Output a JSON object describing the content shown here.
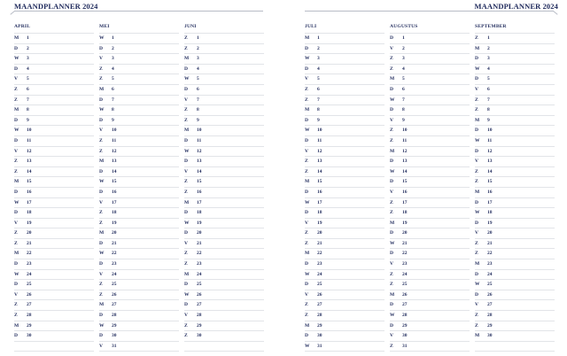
{
  "header": {
    "left_title": "MAANDPLANNER 2024",
    "right_title": "MAANDPLANNER 2024"
  },
  "colors": {
    "text": "#1f2a5c",
    "lines": "#e2e4e8"
  },
  "months": [
    {
      "name": "APRIL",
      "days": [
        [
          "M",
          1
        ],
        [
          "D",
          2
        ],
        [
          "W",
          3
        ],
        [
          "D",
          4
        ],
        [
          "V",
          5
        ],
        [
          "Z",
          6
        ],
        [
          "Z",
          7
        ],
        [
          "M",
          8
        ],
        [
          "D",
          9
        ],
        [
          "W",
          10
        ],
        [
          "D",
          11
        ],
        [
          "V",
          12
        ],
        [
          "Z",
          13
        ],
        [
          "Z",
          14
        ],
        [
          "M",
          15
        ],
        [
          "D",
          16
        ],
        [
          "W",
          17
        ],
        [
          "D",
          18
        ],
        [
          "V",
          19
        ],
        [
          "Z",
          20
        ],
        [
          "Z",
          21
        ],
        [
          "M",
          22
        ],
        [
          "D",
          23
        ],
        [
          "W",
          24
        ],
        [
          "D",
          25
        ],
        [
          "V",
          26
        ],
        [
          "Z",
          27
        ],
        [
          "Z",
          28
        ],
        [
          "M",
          29
        ],
        [
          "D",
          30
        ]
      ]
    },
    {
      "name": "MEI",
      "days": [
        [
          "W",
          1
        ],
        [
          "D",
          2
        ],
        [
          "V",
          3
        ],
        [
          "Z",
          4
        ],
        [
          "Z",
          5
        ],
        [
          "M",
          6
        ],
        [
          "D",
          7
        ],
        [
          "W",
          8
        ],
        [
          "D",
          9
        ],
        [
          "V",
          10
        ],
        [
          "Z",
          11
        ],
        [
          "Z",
          12
        ],
        [
          "M",
          13
        ],
        [
          "D",
          14
        ],
        [
          "W",
          15
        ],
        [
          "D",
          16
        ],
        [
          "V",
          17
        ],
        [
          "Z",
          18
        ],
        [
          "Z",
          19
        ],
        [
          "M",
          20
        ],
        [
          "D",
          21
        ],
        [
          "W",
          22
        ],
        [
          "D",
          23
        ],
        [
          "V",
          24
        ],
        [
          "Z",
          25
        ],
        [
          "Z",
          26
        ],
        [
          "M",
          27
        ],
        [
          "D",
          28
        ],
        [
          "W",
          29
        ],
        [
          "D",
          30
        ],
        [
          "V",
          31
        ]
      ]
    },
    {
      "name": "JUNI",
      "days": [
        [
          "Z",
          1
        ],
        [
          "Z",
          2
        ],
        [
          "M",
          3
        ],
        [
          "D",
          4
        ],
        [
          "W",
          5
        ],
        [
          "D",
          6
        ],
        [
          "V",
          7
        ],
        [
          "Z",
          8
        ],
        [
          "Z",
          9
        ],
        [
          "M",
          10
        ],
        [
          "D",
          11
        ],
        [
          "W",
          12
        ],
        [
          "D",
          13
        ],
        [
          "V",
          14
        ],
        [
          "Z",
          15
        ],
        [
          "Z",
          16
        ],
        [
          "M",
          17
        ],
        [
          "D",
          18
        ],
        [
          "W",
          19
        ],
        [
          "D",
          20
        ],
        [
          "V",
          21
        ],
        [
          "Z",
          22
        ],
        [
          "Z",
          23
        ],
        [
          "M",
          24
        ],
        [
          "D",
          25
        ],
        [
          "W",
          26
        ],
        [
          "D",
          27
        ],
        [
          "V",
          28
        ],
        [
          "Z",
          29
        ],
        [
          "Z",
          30
        ]
      ]
    },
    {
      "name": "JULI",
      "days": [
        [
          "M",
          1
        ],
        [
          "D",
          2
        ],
        [
          "W",
          3
        ],
        [
          "D",
          4
        ],
        [
          "V",
          5
        ],
        [
          "Z",
          6
        ],
        [
          "Z",
          7
        ],
        [
          "M",
          8
        ],
        [
          "D",
          9
        ],
        [
          "W",
          10
        ],
        [
          "D",
          11
        ],
        [
          "V",
          12
        ],
        [
          "Z",
          13
        ],
        [
          "Z",
          14
        ],
        [
          "M",
          15
        ],
        [
          "D",
          16
        ],
        [
          "W",
          17
        ],
        [
          "D",
          18
        ],
        [
          "V",
          19
        ],
        [
          "Z",
          20
        ],
        [
          "Z",
          21
        ],
        [
          "M",
          22
        ],
        [
          "D",
          23
        ],
        [
          "W",
          24
        ],
        [
          "D",
          25
        ],
        [
          "V",
          26
        ],
        [
          "Z",
          27
        ],
        [
          "Z",
          28
        ],
        [
          "M",
          29
        ],
        [
          "D",
          30
        ],
        [
          "W",
          31
        ]
      ]
    },
    {
      "name": "AUGUSTUS",
      "days": [
        [
          "D",
          1
        ],
        [
          "V",
          2
        ],
        [
          "Z",
          3
        ],
        [
          "Z",
          4
        ],
        [
          "M",
          5
        ],
        [
          "D",
          6
        ],
        [
          "W",
          7
        ],
        [
          "D",
          8
        ],
        [
          "V",
          9
        ],
        [
          "Z",
          10
        ],
        [
          "Z",
          11
        ],
        [
          "M",
          12
        ],
        [
          "D",
          13
        ],
        [
          "W",
          14
        ],
        [
          "D",
          15
        ],
        [
          "V",
          16
        ],
        [
          "Z",
          17
        ],
        [
          "Z",
          18
        ],
        [
          "M",
          19
        ],
        [
          "D",
          20
        ],
        [
          "W",
          21
        ],
        [
          "D",
          22
        ],
        [
          "V",
          23
        ],
        [
          "Z",
          24
        ],
        [
          "Z",
          25
        ],
        [
          "M",
          26
        ],
        [
          "D",
          27
        ],
        [
          "W",
          28
        ],
        [
          "D",
          29
        ],
        [
          "V",
          30
        ],
        [
          "Z",
          31
        ]
      ]
    },
    {
      "name": "SEPTEMBER",
      "days": [
        [
          "Z",
          1
        ],
        [
          "M",
          2
        ],
        [
          "D",
          3
        ],
        [
          "W",
          4
        ],
        [
          "D",
          5
        ],
        [
          "V",
          6
        ],
        [
          "Z",
          7
        ],
        [
          "Z",
          8
        ],
        [
          "M",
          9
        ],
        [
          "D",
          10
        ],
        [
          "W",
          11
        ],
        [
          "D",
          12
        ],
        [
          "V",
          13
        ],
        [
          "Z",
          14
        ],
        [
          "Z",
          15
        ],
        [
          "M",
          16
        ],
        [
          "D",
          17
        ],
        [
          "W",
          18
        ],
        [
          "D",
          19
        ],
        [
          "V",
          20
        ],
        [
          "Z",
          21
        ],
        [
          "Z",
          22
        ],
        [
          "M",
          23
        ],
        [
          "D",
          24
        ],
        [
          "W",
          25
        ],
        [
          "D",
          26
        ],
        [
          "V",
          27
        ],
        [
          "Z",
          28
        ],
        [
          "Z",
          29
        ],
        [
          "M",
          30
        ]
      ]
    }
  ]
}
